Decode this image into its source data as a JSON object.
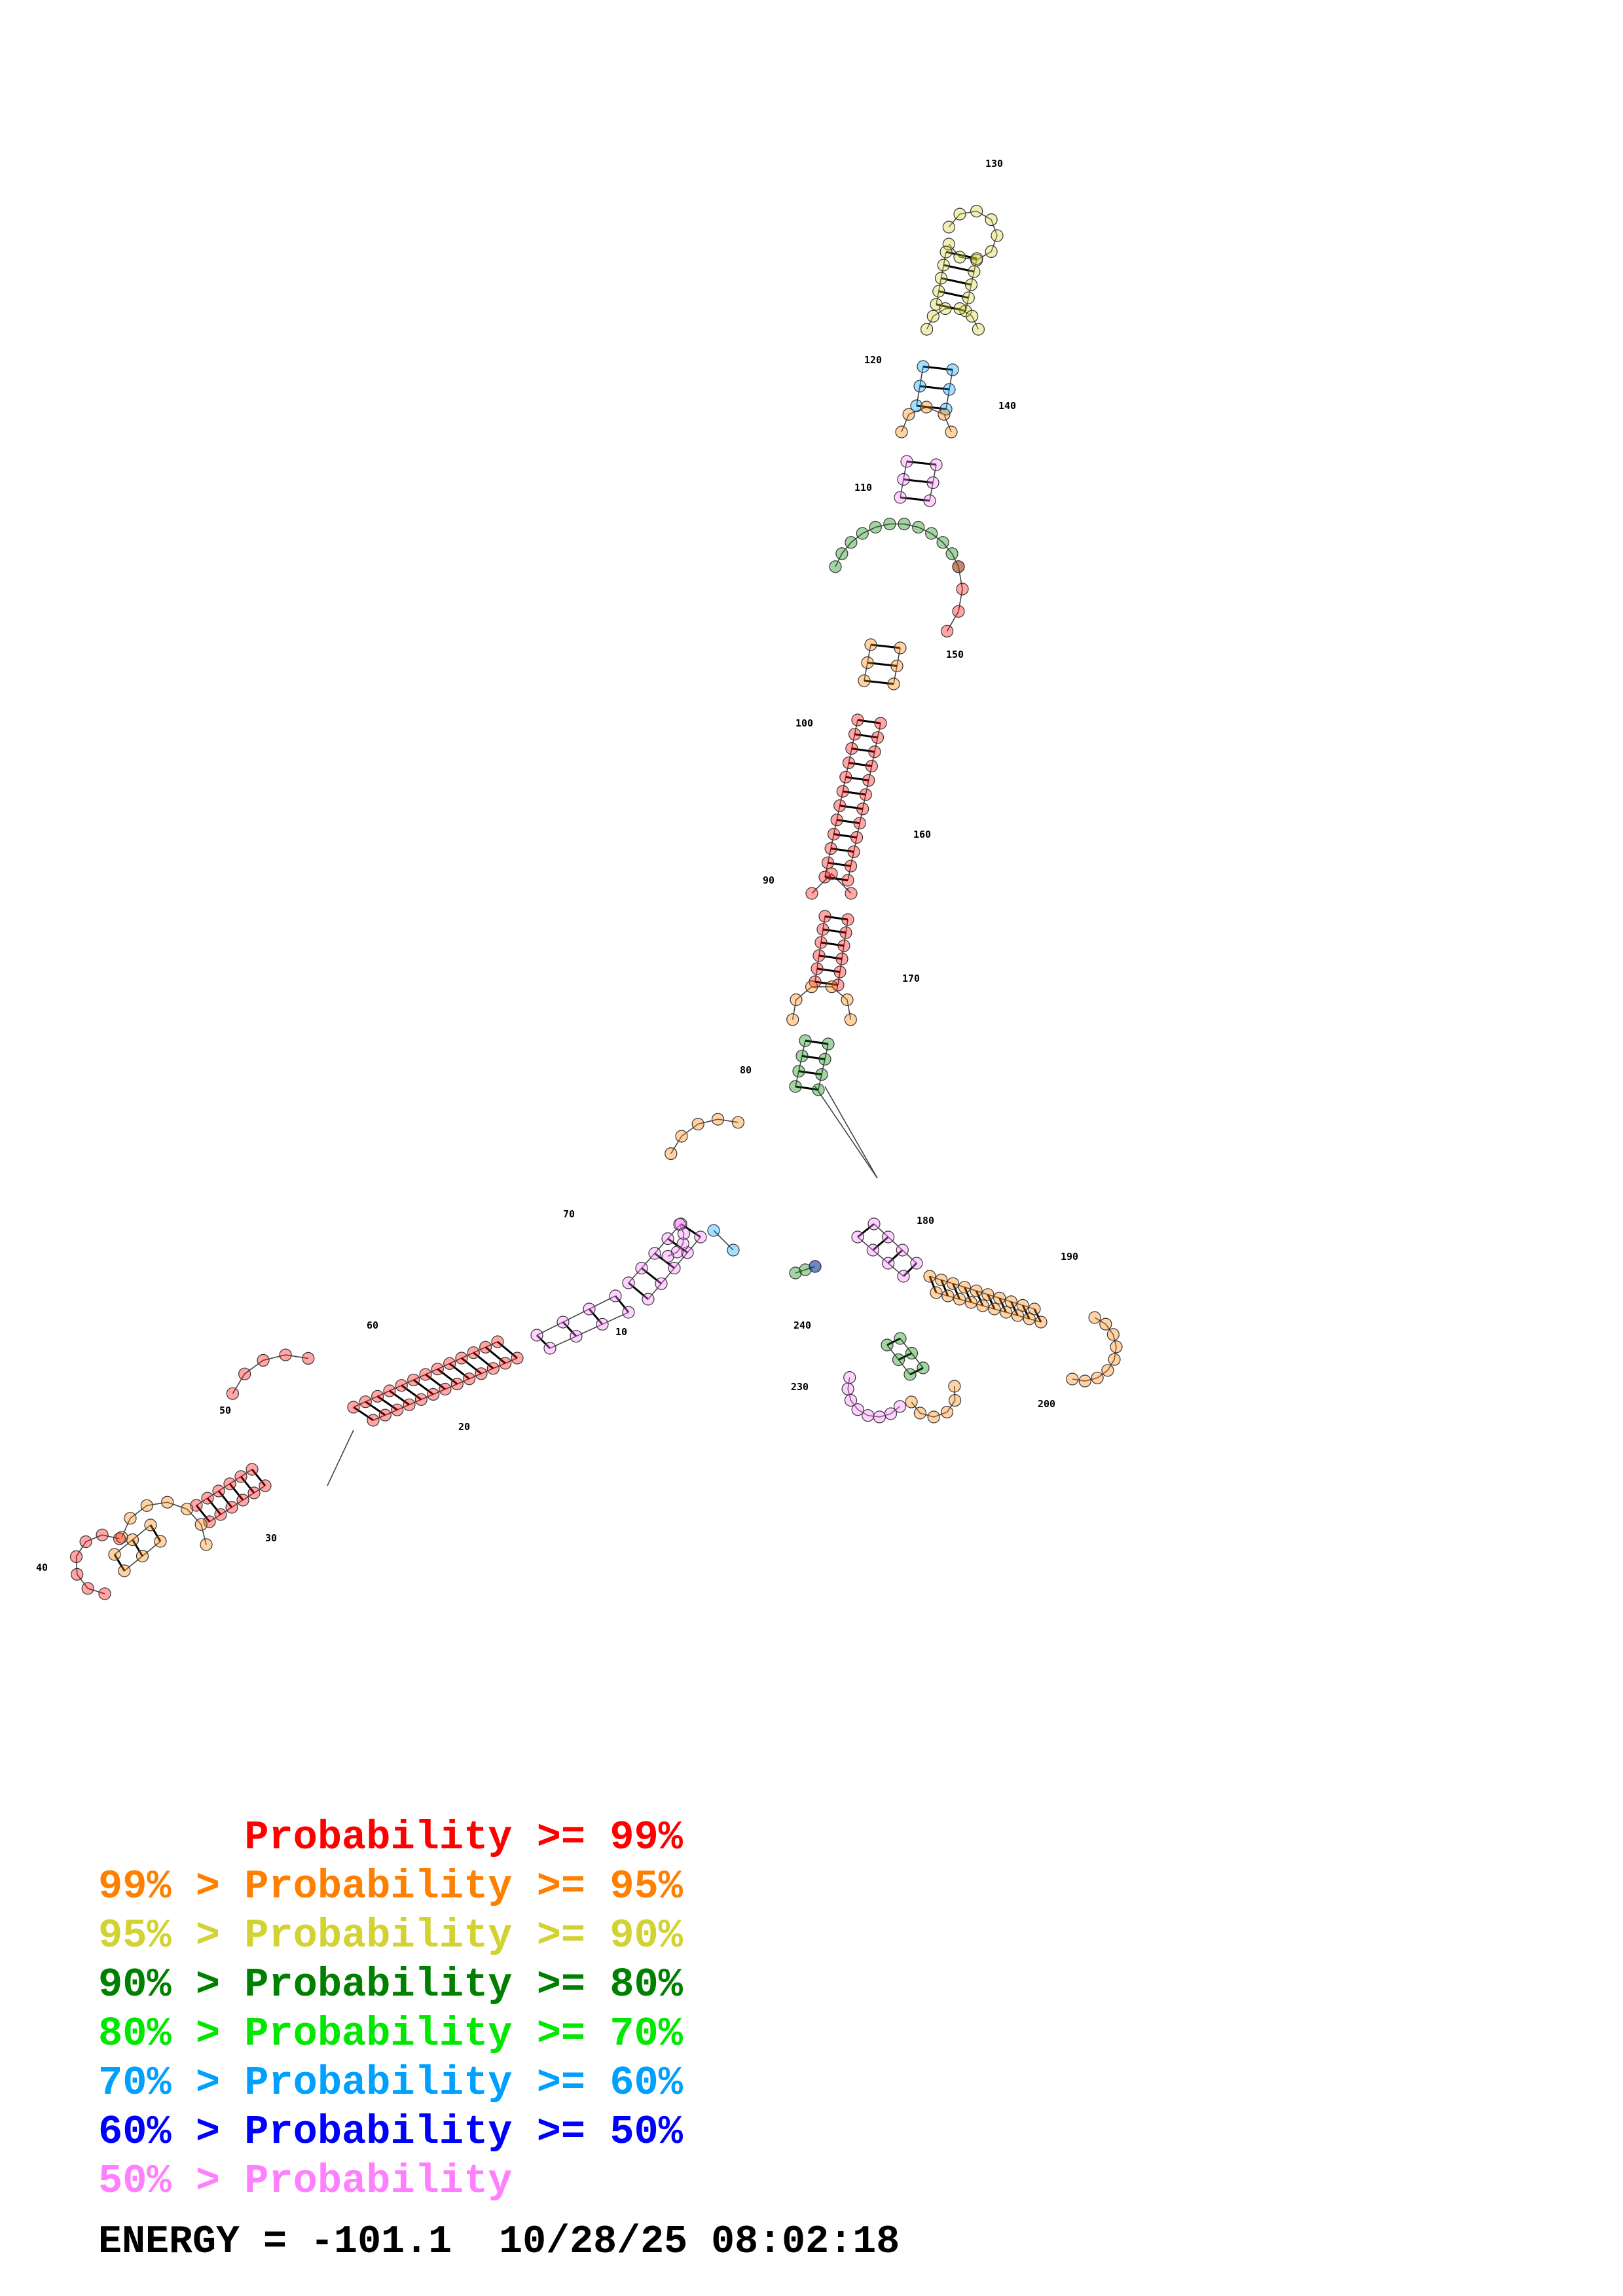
{
  "structure": {
    "colors": {
      "p99": "#ff0000",
      "p95": "#ff8000",
      "p90": "#d2d232",
      "p80": "#008000",
      "p70": "#00e800",
      "p60": "#00a0ff",
      "p50": "#0000ff",
      "lt50": "#ff80ff"
    },
    "position_labels": [
      "10",
      "20",
      "30",
      "40",
      "50",
      "60",
      "70",
      "80",
      "90",
      "100",
      "110",
      "120",
      "130",
      "140",
      "150",
      "160",
      "170",
      "180",
      "190",
      "200",
      "230",
      "240"
    ]
  },
  "legend": [
    {
      "prefix": "",
      "label": "Probability >= 99%",
      "color": "#ff0000"
    },
    {
      "prefix": "99% > ",
      "label": "Probability >= 95%",
      "color": "#ff8000"
    },
    {
      "prefix": "95% > ",
      "label": "Probability >= 90%",
      "color": "#d2d232"
    },
    {
      "prefix": "90% > ",
      "label": "Probability >= 80%",
      "color": "#008000"
    },
    {
      "prefix": "80% > ",
      "label": "Probability >= 70%",
      "color": "#00e800"
    },
    {
      "prefix": "70% > ",
      "label": "Probability >= 60%",
      "color": "#00a0ff"
    },
    {
      "prefix": "60% > ",
      "label": "Probability >= 50%",
      "color": "#0000ff"
    },
    {
      "prefix": "50% > ",
      "label": "Probability",
      "color": "#ff80ff"
    }
  ],
  "footer": {
    "energy": "ENERGY = -101.1",
    "timestamp": "10/28/25 08:02:18"
  }
}
